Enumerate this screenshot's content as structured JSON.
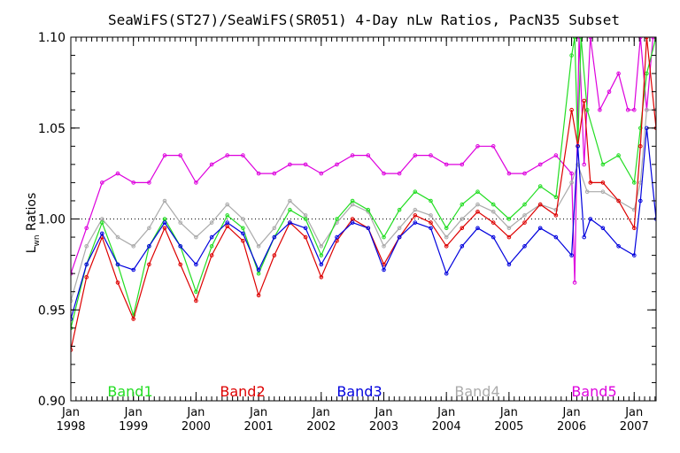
{
  "chart_data": {
    "type": "line",
    "title": "SeaWiFS(ST27)/SeaWiFS(SR051) 4-Day nLw Ratios, PacN35 Subset",
    "ylabel": "L",
    "ylabel_sub": "wn",
    "ylabel_suffix": " Ratios",
    "xlabel": "",
    "xlim": [
      1998.0,
      2007.35
    ],
    "ylim": [
      0.9,
      1.1
    ],
    "grid": false,
    "reference_line": 1.0,
    "y_ticks": [
      {
        "value": 0.9,
        "label": "0.90"
      },
      {
        "value": 0.95,
        "label": "0.95"
      },
      {
        "value": 1.0,
        "label": "1.00"
      },
      {
        "value": 1.05,
        "label": "1.05"
      },
      {
        "value": 1.1,
        "label": "1.10"
      }
    ],
    "x_ticks": [
      {
        "value": 1998.0,
        "month": "Jan",
        "year": "1998"
      },
      {
        "value": 1999.0,
        "month": "Jan",
        "year": "1999"
      },
      {
        "value": 2000.0,
        "month": "Jan",
        "year": "2000"
      },
      {
        "value": 2001.0,
        "month": "Jan",
        "year": "2001"
      },
      {
        "value": 2002.0,
        "month": "Jan",
        "year": "2002"
      },
      {
        "value": 2003.0,
        "month": "Jan",
        "year": "2003"
      },
      {
        "value": 2004.0,
        "month": "Jan",
        "year": "2004"
      },
      {
        "value": 2005.0,
        "month": "Jan",
        "year": "2005"
      },
      {
        "value": 2006.0,
        "month": "Jan",
        "year": "2006"
      },
      {
        "value": 2007.0,
        "month": "Jan",
        "year": "2007"
      }
    ],
    "legend_placement": "bottom",
    "series": [
      {
        "name": "Band1",
        "color": "#22dd22",
        "x": [
          1998.0,
          1998.25,
          1998.5,
          1998.75,
          1999.0,
          1999.25,
          1999.5,
          1999.75,
          2000.0,
          2000.25,
          2000.5,
          2000.75,
          2001.0,
          2001.25,
          2001.5,
          2001.75,
          2002.0,
          2002.25,
          2002.5,
          2002.75,
          2003.0,
          2003.25,
          2003.5,
          2003.75,
          2004.0,
          2004.25,
          2004.5,
          2004.75,
          2005.0,
          2005.25,
          2005.5,
          2005.75,
          2006.0,
          2006.05,
          2006.1,
          2006.15,
          2006.25,
          2006.5,
          2006.75,
          2007.0,
          2007.1,
          2007.2,
          2007.35
        ],
        "y": [
          0.94,
          0.975,
          0.998,
          0.975,
          0.947,
          0.985,
          1.0,
          0.985,
          0.96,
          0.985,
          1.002,
          0.995,
          0.97,
          0.99,
          1.005,
          1.0,
          0.98,
          1.0,
          1.01,
          1.005,
          0.99,
          1.005,
          1.015,
          1.01,
          0.995,
          1.008,
          1.015,
          1.008,
          1.0,
          1.008,
          1.018,
          1.012,
          1.09,
          1.12,
          1.04,
          1.12,
          1.06,
          1.03,
          1.035,
          1.02,
          1.05,
          1.08,
          1.1
        ]
      },
      {
        "name": "Band2",
        "color": "#dd0000",
        "x": [
          1998.0,
          1998.25,
          1998.5,
          1998.75,
          1999.0,
          1999.25,
          1999.5,
          1999.75,
          2000.0,
          2000.25,
          2000.5,
          2000.75,
          2001.0,
          2001.25,
          2001.5,
          2001.75,
          2002.0,
          2002.25,
          2002.5,
          2002.75,
          2003.0,
          2003.25,
          2003.5,
          2003.75,
          2004.0,
          2004.25,
          2004.5,
          2004.75,
          2005.0,
          2005.25,
          2005.5,
          2005.75,
          2006.0,
          2006.1,
          2006.2,
          2006.3,
          2006.5,
          2006.75,
          2007.0,
          2007.1,
          2007.2,
          2007.35
        ],
        "y": [
          0.928,
          0.968,
          0.99,
          0.965,
          0.945,
          0.975,
          0.995,
          0.975,
          0.955,
          0.98,
          0.996,
          0.988,
          0.958,
          0.98,
          0.998,
          0.99,
          0.968,
          0.988,
          1.0,
          0.995,
          0.975,
          0.99,
          1.002,
          0.998,
          0.985,
          0.995,
          1.004,
          0.998,
          0.99,
          0.998,
          1.008,
          1.002,
          1.06,
          1.04,
          1.065,
          1.02,
          1.02,
          1.01,
          0.995,
          1.04,
          1.1,
          1.05
        ]
      },
      {
        "name": "Band3",
        "color": "#0000dd",
        "x": [
          1998.0,
          1998.25,
          1998.5,
          1998.75,
          1999.0,
          1999.25,
          1999.5,
          1999.75,
          2000.0,
          2000.25,
          2000.5,
          2000.75,
          2001.0,
          2001.25,
          2001.5,
          2001.75,
          2002.0,
          2002.25,
          2002.5,
          2002.75,
          2003.0,
          2003.25,
          2003.5,
          2003.75,
          2004.0,
          2004.25,
          2004.5,
          2004.75,
          2005.0,
          2005.25,
          2005.5,
          2005.75,
          2006.0,
          2006.1,
          2006.2,
          2006.3,
          2006.5,
          2006.75,
          2007.0,
          2007.1,
          2007.2,
          2007.35
        ],
        "y": [
          0.945,
          0.975,
          0.992,
          0.975,
          0.972,
          0.985,
          0.998,
          0.985,
          0.975,
          0.99,
          0.998,
          0.992,
          0.972,
          0.99,
          0.998,
          0.995,
          0.975,
          0.99,
          0.998,
          0.995,
          0.972,
          0.99,
          0.998,
          0.995,
          0.97,
          0.985,
          0.995,
          0.99,
          0.975,
          0.985,
          0.995,
          0.99,
          0.98,
          1.04,
          0.99,
          1.0,
          0.995,
          0.985,
          0.98,
          1.01,
          1.05,
          1.0
        ]
      },
      {
        "name": "Band4",
        "color": "#aaaaaa",
        "x": [
          1998.0,
          1998.25,
          1998.5,
          1998.75,
          1999.0,
          1999.25,
          1999.5,
          1999.75,
          2000.0,
          2000.25,
          2000.5,
          2000.75,
          2001.0,
          2001.25,
          2001.5,
          2001.75,
          2002.0,
          2002.25,
          2002.5,
          2002.75,
          2003.0,
          2003.25,
          2003.5,
          2003.75,
          2004.0,
          2004.25,
          2004.5,
          2004.75,
          2005.0,
          2005.25,
          2005.5,
          2005.75,
          2006.0,
          2006.1,
          2006.25,
          2006.5,
          2006.75,
          2007.0,
          2007.1,
          2007.2,
          2007.35
        ],
        "y": [
          0.955,
          0.985,
          1.0,
          0.99,
          0.985,
          0.995,
          1.01,
          0.998,
          0.99,
          0.998,
          1.008,
          1.0,
          0.985,
          0.995,
          1.01,
          1.002,
          0.985,
          0.998,
          1.008,
          1.004,
          0.985,
          0.995,
          1.005,
          1.002,
          0.99,
          1.0,
          1.008,
          1.004,
          0.995,
          1.002,
          1.008,
          1.005,
          1.02,
          1.03,
          1.015,
          1.015,
          1.01,
          1.005,
          1.02,
          1.06,
          1.06
        ]
      },
      {
        "name": "Band5",
        "color": "#dd00dd",
        "x": [
          1998.0,
          1998.25,
          1998.5,
          1998.75,
          1999.0,
          1999.25,
          1999.5,
          1999.75,
          2000.0,
          2000.25,
          2000.5,
          2000.75,
          2001.0,
          2001.25,
          2001.5,
          2001.75,
          2002.0,
          2002.25,
          2002.5,
          2002.75,
          2003.0,
          2003.25,
          2003.5,
          2003.75,
          2004.0,
          2004.25,
          2004.5,
          2004.75,
          2005.0,
          2005.25,
          2005.5,
          2005.75,
          2006.0,
          2006.05,
          2006.12,
          2006.2,
          2006.3,
          2006.45,
          2006.6,
          2006.75,
          2006.9,
          2007.0,
          2007.1,
          2007.2,
          2007.3
        ],
        "y": [
          0.97,
          0.995,
          1.02,
          1.025,
          1.02,
          1.02,
          1.035,
          1.035,
          1.02,
          1.03,
          1.035,
          1.035,
          1.025,
          1.025,
          1.03,
          1.03,
          1.025,
          1.03,
          1.035,
          1.035,
          1.025,
          1.025,
          1.035,
          1.035,
          1.03,
          1.03,
          1.04,
          1.04,
          1.025,
          1.025,
          1.03,
          1.035,
          1.025,
          0.965,
          1.1,
          1.03,
          1.1,
          1.06,
          1.07,
          1.08,
          1.06,
          1.06,
          1.1,
          1.06,
          1.1
        ]
      }
    ]
  }
}
